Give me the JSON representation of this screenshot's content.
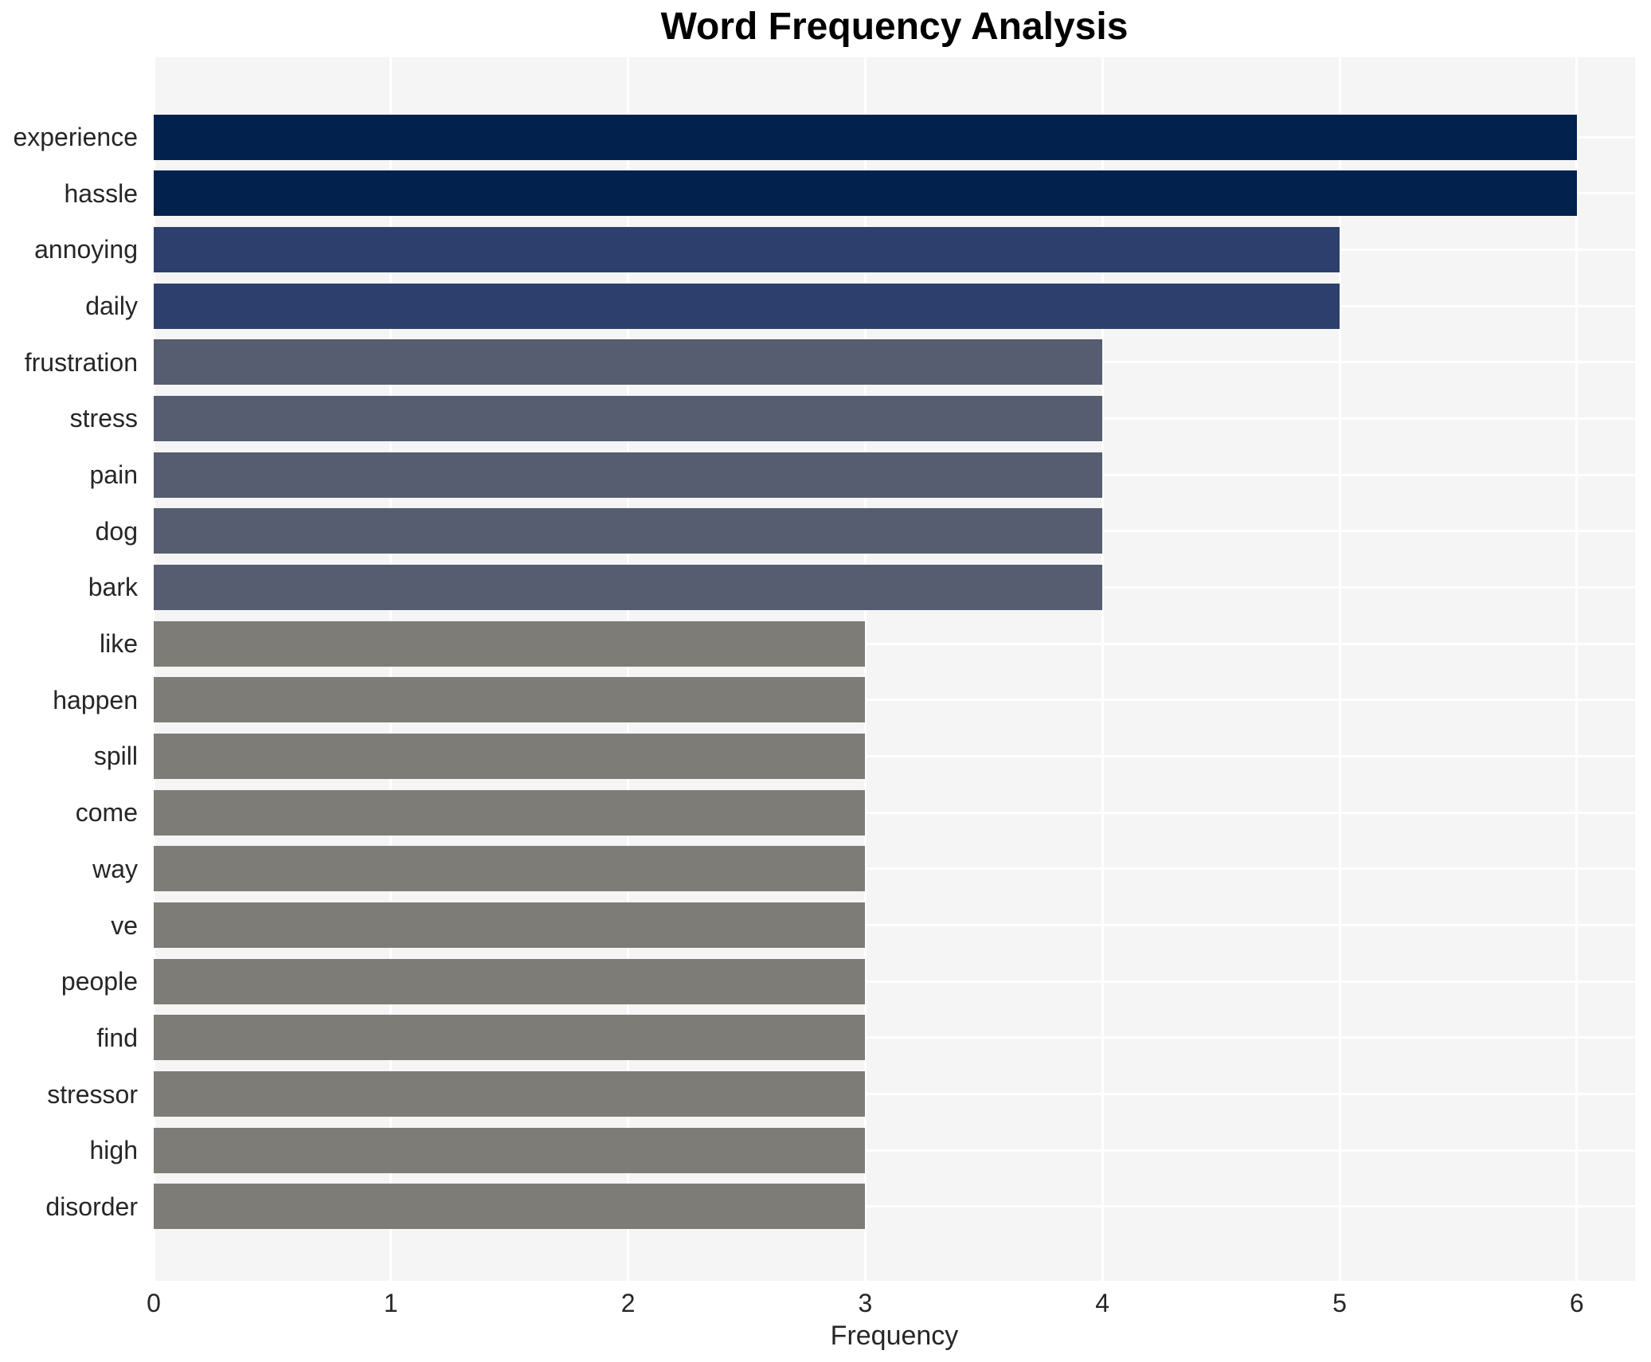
{
  "title": "Word Frequency Analysis",
  "chart_data": {
    "type": "bar",
    "orientation": "horizontal",
    "title": "Word Frequency Analysis",
    "xlabel": "Frequency",
    "ylabel": "",
    "categories": [
      "experience",
      "hassle",
      "annoying",
      "daily",
      "frustration",
      "stress",
      "pain",
      "dog",
      "bark",
      "like",
      "happen",
      "spill",
      "come",
      "way",
      "ve",
      "people",
      "find",
      "stressor",
      "high",
      "disorder"
    ],
    "values": [
      6,
      6,
      5,
      5,
      4,
      4,
      4,
      4,
      4,
      3,
      3,
      3,
      3,
      3,
      3,
      3,
      3,
      3,
      3,
      3
    ],
    "xticks": [
      0,
      1,
      2,
      3,
      4,
      5,
      6
    ],
    "xlim": [
      0,
      6.25
    ],
    "grid": true,
    "legend": false,
    "colors_by_value": {
      "6": "#02214d",
      "5": "#2d406d",
      "4": "#565d70",
      "3": "#7d7c76"
    },
    "plot_background": "#f5f5f6",
    "grid_color": "#ffffff",
    "text_color": "#262626"
  }
}
